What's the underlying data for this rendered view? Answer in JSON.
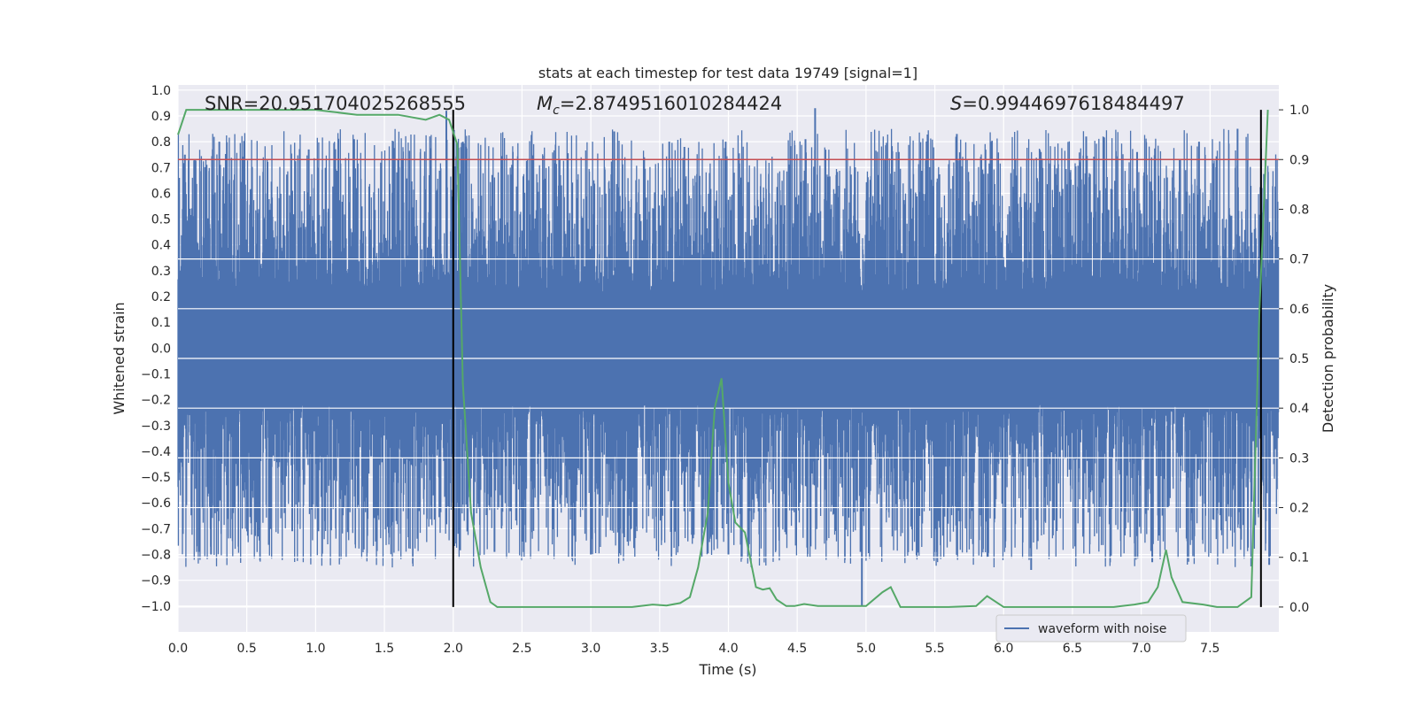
{
  "chart_data": {
    "type": "line",
    "title": "stats at each timestep for test data 19749 [signal=1]",
    "xlabel": "Time (s)",
    "ylabel": "Whitened strain",
    "y2label": "Detection probability",
    "xlim": [
      0.0,
      8.0
    ],
    "ylim": [
      -1.1,
      1.02
    ],
    "y2lim": [
      -0.05,
      1.05
    ],
    "xticks": [
      "0.0",
      "0.5",
      "1.0",
      "1.5",
      "2.0",
      "2.5",
      "3.0",
      "3.5",
      "4.0",
      "4.5",
      "5.0",
      "5.5",
      "6.0",
      "6.5",
      "7.0",
      "7.5"
    ],
    "yticks": [
      "1.0",
      "0.9",
      "0.8",
      "0.7",
      "0.6",
      "0.5",
      "0.4",
      "0.3",
      "0.2",
      "0.1",
      "0.0",
      "-0.1",
      "-0.2",
      "-0.3",
      "-0.4",
      "-0.5",
      "-0.6",
      "-0.7",
      "-0.8",
      "-0.9",
      "-1.0"
    ],
    "y2ticks": [
      "1.0",
      "0.9",
      "0.8",
      "0.7",
      "0.6",
      "0.5",
      "0.4",
      "0.3",
      "0.2",
      "0.1",
      "0.0"
    ],
    "annotations": {
      "snr": "SNR=20.951704025268555",
      "mc_symbol": "M",
      "mc_sub": "c",
      "mc_value": "=2.8749516010284424",
      "s_symbol": "S",
      "s_value": "=0.9944697618484497"
    },
    "legend": {
      "label": "waveform with noise",
      "placement": "bottom-right"
    },
    "threshold": {
      "axis": "right",
      "value": 0.9,
      "color": "#c44e52"
    },
    "signal_window": {
      "start": 2.0,
      "end": 7.87,
      "color": "#000000"
    },
    "series": [
      {
        "name": "waveform with noise",
        "axis": "left",
        "color": "#4c72b0",
        "kind": "noise",
        "typical_max": 0.45,
        "typical_min": -0.45,
        "peak_max": [
          [
            0.05,
            0.75
          ],
          [
            0.3,
            0.8
          ],
          [
            0.95,
            0.77
          ],
          [
            1.28,
            0.81
          ],
          [
            1.95,
            0.92
          ],
          [
            2.07,
            0.8
          ],
          [
            3.17,
            0.84
          ],
          [
            3.57,
            0.8
          ],
          [
            3.68,
            0.78
          ],
          [
            3.98,
            0.8
          ],
          [
            4.56,
            0.81
          ],
          [
            4.63,
            0.93
          ],
          [
            5.66,
            0.83
          ],
          [
            6.27,
            0.76
          ],
          [
            6.6,
            0.82
          ],
          [
            6.97,
            0.76
          ],
          [
            7.42,
            0.8
          ],
          [
            7.7,
            0.85
          ]
        ],
        "peak_min": [
          [
            0.24,
            -0.8
          ],
          [
            0.58,
            -0.73
          ],
          [
            0.83,
            -0.71
          ],
          [
            1.02,
            -0.71
          ],
          [
            2.3,
            -0.79
          ],
          [
            3.0,
            -0.8
          ],
          [
            4.0,
            -0.8
          ],
          [
            4.15,
            -0.76
          ],
          [
            4.96,
            -0.79
          ],
          [
            4.97,
            -1.0
          ],
          [
            6.2,
            -0.86
          ],
          [
            7.08,
            -0.83
          ],
          [
            7.19,
            -0.62
          ],
          [
            7.93,
            -0.84
          ]
        ]
      },
      {
        "name": "detection probability",
        "axis": "right",
        "color": "#55a868",
        "x": [
          0.0,
          0.06,
          0.3,
          0.6,
          1.0,
          1.3,
          1.6,
          1.8,
          1.9,
          1.97,
          2.03,
          2.07,
          2.13,
          2.2,
          2.27,
          2.32,
          2.4,
          2.8,
          3.3,
          3.45,
          3.55,
          3.65,
          3.72,
          3.78,
          3.85,
          3.9,
          3.95,
          4.0,
          4.05,
          4.12,
          4.2,
          4.25,
          4.3,
          4.35,
          4.42,
          4.48,
          4.55,
          4.65,
          4.8,
          5.0,
          5.12,
          5.18,
          5.25,
          5.3,
          5.4,
          5.6,
          5.8,
          5.88,
          6.0,
          6.2,
          6.5,
          6.8,
          6.95,
          7.05,
          7.12,
          7.18,
          7.22,
          7.3,
          7.45,
          7.55,
          7.7,
          7.8,
          7.86,
          7.92
        ],
        "y": [
          0.95,
          1.0,
          1.0,
          1.0,
          1.0,
          0.99,
          0.99,
          0.98,
          0.99,
          0.98,
          0.93,
          0.45,
          0.19,
          0.08,
          0.01,
          0.0,
          0.0,
          0.0,
          0.0,
          0.005,
          0.003,
          0.008,
          0.02,
          0.08,
          0.19,
          0.4,
          0.46,
          0.25,
          0.17,
          0.15,
          0.04,
          0.035,
          0.038,
          0.015,
          0.002,
          0.002,
          0.006,
          0.002,
          0.002,
          0.002,
          0.03,
          0.04,
          0.0,
          0.0,
          0.0,
          0.0,
          0.002,
          0.022,
          0.0,
          0.0,
          0.0,
          0.0,
          0.005,
          0.01,
          0.04,
          0.115,
          0.06,
          0.01,
          0.005,
          0.0,
          0.0,
          0.02,
          0.6,
          1.0
        ]
      }
    ]
  }
}
